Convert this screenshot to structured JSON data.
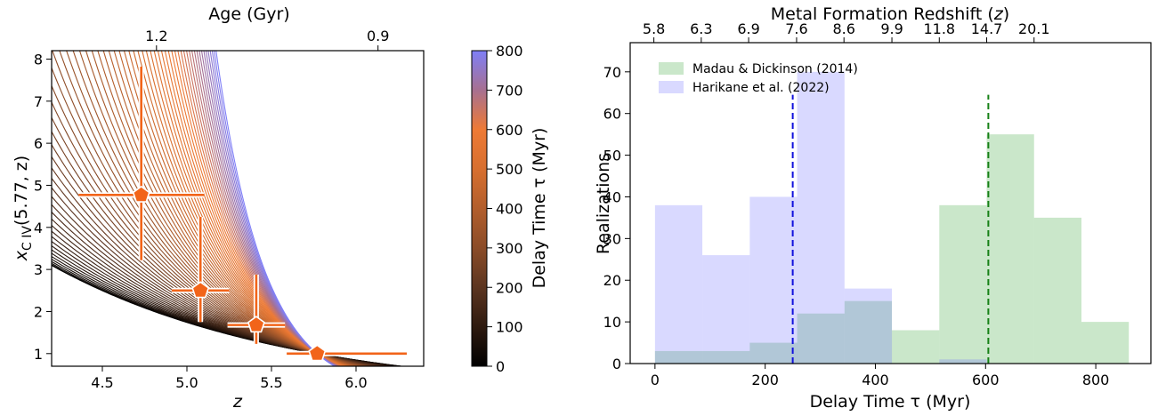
{
  "chart_data": [
    {
      "type": "line",
      "xlabel": "z",
      "ylabel": "x",
      "ylabel_sub": "C IV",
      "ylabel_tail": "(5.77, z)",
      "top_label": "Age (Gyr)",
      "xlim": [
        4.2,
        6.4
      ],
      "ylim": [
        0.7,
        8.2
      ],
      "x_ticks": [
        4.5,
        5.0,
        5.5,
        6.0
      ],
      "x_tick_labels": [
        "4.5",
        "5.0",
        "5.5",
        "6.0"
      ],
      "y_ticks": [
        1,
        2,
        3,
        4,
        5,
        6,
        7,
        8
      ],
      "y_tick_labels": [
        "1",
        "2",
        "3",
        "4",
        "5",
        "6",
        "7",
        "8"
      ],
      "top_ticks": [
        {
          "z": 4.82,
          "label": "1.2"
        },
        {
          "z": 6.13,
          "label": "0.9"
        }
      ],
      "curve_anchor": {
        "z": 5.77,
        "x": 1.0
      },
      "colorbar": {
        "label": "Delay Time τ (Myr)",
        "range": [
          0,
          800
        ],
        "ticks": [
          0,
          100,
          200,
          300,
          400,
          500,
          600,
          700,
          800
        ],
        "tick_labels": [
          "0",
          "100",
          "200",
          "300",
          "400",
          "500",
          "600",
          "700",
          "800"
        ],
        "colors": [
          "#000000",
          "#2e1a0f",
          "#5c3520",
          "#8b4c28",
          "#b25e2c",
          "#d76f2f",
          "#ee7a35",
          "#a77090",
          "#7f7ff7"
        ]
      },
      "points": [
        {
          "z": 4.73,
          "x": 4.77,
          "zerr": [
            0.37,
            0.37
          ],
          "xerr": [
            1.55,
            3.05
          ]
        },
        {
          "z": 5.08,
          "x": 2.5,
          "zerr": [
            0.17,
            0.17
          ],
          "xerr": [
            0.75,
            1.75
          ]
        },
        {
          "z": 5.41,
          "x": 1.68,
          "zerr": [
            0.17,
            0.17
          ],
          "xerr": [
            0.45,
            1.2
          ]
        },
        {
          "z": 5.77,
          "x": 1.0,
          "zerr": [
            0.18,
            0.53
          ],
          "xerr": [
            0.05,
            0.05
          ]
        }
      ],
      "marker_color": "#f26419"
    },
    {
      "type": "bar",
      "xlabel": "Delay Time τ (Myr)",
      "ylabel": "Realizations",
      "top_label_text": "Metal Formation Redshift ",
      "top_label_var": "z",
      "xlim": [
        -45,
        900
      ],
      "ylim": [
        0,
        77
      ],
      "x_ticks": [
        0,
        200,
        400,
        600,
        800
      ],
      "x_tick_labels": [
        "0",
        "200",
        "400",
        "600",
        "800"
      ],
      "y_ticks": [
        0,
        10,
        20,
        30,
        40,
        50,
        60,
        70
      ],
      "y_tick_labels": [
        "0",
        "10",
        "20",
        "30",
        "40",
        "50",
        "60",
        "70"
      ],
      "top_ticks": [
        {
          "tau": -2,
          "label": "5.8"
        },
        {
          "tau": 84,
          "label": "6.3"
        },
        {
          "tau": 170,
          "label": "6.9"
        },
        {
          "tau": 257,
          "label": "7.6"
        },
        {
          "tau": 343,
          "label": "8.6"
        },
        {
          "tau": 430,
          "label": "9.9"
        },
        {
          "tau": 516,
          "label": "11.8"
        },
        {
          "tau": 602,
          "label": "14.7"
        },
        {
          "tau": 688,
          "label": "20.1"
        }
      ],
      "bin_edges": [
        0,
        86,
        172,
        258,
        344,
        430,
        516,
        602,
        688,
        774,
        860
      ],
      "series": [
        {
          "name": "Madau & Dickinson (2014)",
          "color": "#2ca02c",
          "values": [
            3,
            3,
            5,
            12,
            15,
            8,
            38,
            55,
            35,
            10
          ],
          "median": 605,
          "line_color": "#158015"
        },
        {
          "name": "Harikane et al. (2022)",
          "color": "#6666ff",
          "values": [
            38,
            26,
            40,
            70,
            18,
            0,
            1,
            0,
            0,
            0
          ],
          "median": 250,
          "line_color": "#1111dd"
        }
      ]
    }
  ]
}
